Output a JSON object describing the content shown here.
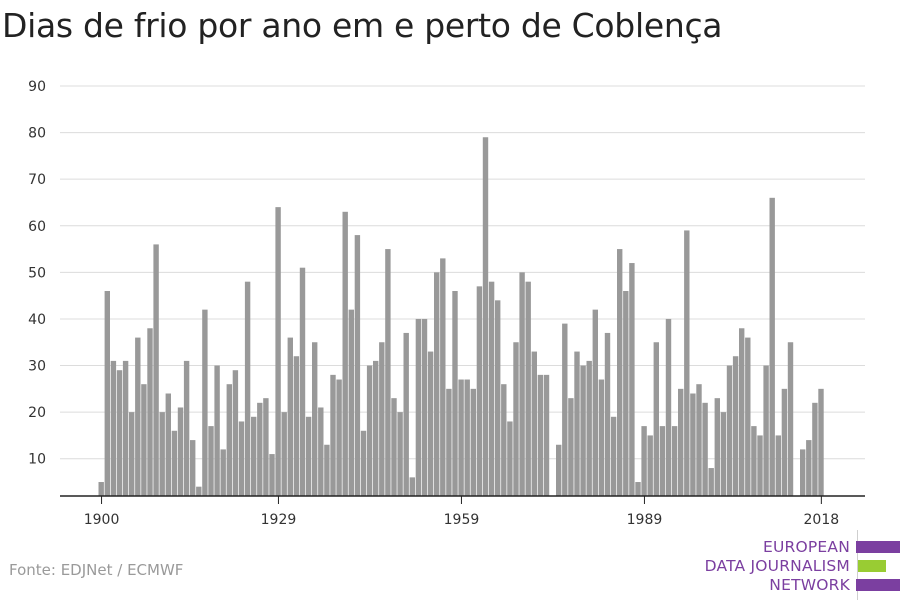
{
  "title": "Dias de frio por ano em e perto de Coblença",
  "source": "Fonte: EDJNet / ECMWF",
  "logo": {
    "lines": [
      "EUROPEAN",
      "DATA JOURNALISM",
      "NETWORK"
    ],
    "colors": {
      "text": "#7b3fa0",
      "purple": "#7b3fa0",
      "green": "#99cc33"
    }
  },
  "chart_data": {
    "type": "bar",
    "title": "Dias de frio por ano em e perto de Coblença",
    "xlabel": "",
    "ylabel": "",
    "ylim": [
      2,
      90
    ],
    "yticks": [
      10,
      20,
      30,
      40,
      50,
      60,
      70,
      80,
      90
    ],
    "xticks": [
      1900,
      1929,
      1959,
      1989,
      2018
    ],
    "grid": true,
    "bar_color": "#999999",
    "x": [
      1900,
      1901,
      1902,
      1903,
      1904,
      1905,
      1906,
      1907,
      1908,
      1909,
      1910,
      1911,
      1912,
      1913,
      1914,
      1915,
      1916,
      1917,
      1918,
      1919,
      1920,
      1921,
      1922,
      1923,
      1924,
      1925,
      1926,
      1927,
      1928,
      1929,
      1930,
      1931,
      1932,
      1933,
      1934,
      1935,
      1936,
      1937,
      1938,
      1939,
      1940,
      1941,
      1942,
      1943,
      1944,
      1945,
      1946,
      1947,
      1948,
      1949,
      1950,
      1951,
      1952,
      1953,
      1954,
      1955,
      1956,
      1957,
      1958,
      1959,
      1960,
      1961,
      1962,
      1963,
      1964,
      1965,
      1966,
      1967,
      1968,
      1969,
      1970,
      1971,
      1972,
      1973,
      1974,
      1975,
      1976,
      1977,
      1978,
      1979,
      1980,
      1981,
      1982,
      1983,
      1984,
      1985,
      1986,
      1987,
      1988,
      1989,
      1990,
      1991,
      1992,
      1993,
      1994,
      1995,
      1996,
      1997,
      1998,
      1999,
      2000,
      2001,
      2002,
      2003,
      2004,
      2005,
      2006,
      2007,
      2008,
      2009,
      2010,
      2011,
      2012,
      2013,
      2014,
      2015,
      2016,
      2017,
      2018
    ],
    "values": [
      5,
      46,
      31,
      29,
      31,
      20,
      36,
      26,
      38,
      56,
      20,
      24,
      16,
      21,
      31,
      14,
      4,
      42,
      17,
      30,
      12,
      26,
      29,
      18,
      48,
      19,
      22,
      23,
      11,
      64,
      20,
      36,
      32,
      51,
      19,
      35,
      21,
      13,
      28,
      27,
      63,
      42,
      58,
      16,
      30,
      31,
      35,
      55,
      23,
      20,
      37,
      6,
      40,
      40,
      33,
      50,
      53,
      25,
      46,
      27,
      27,
      25,
      47,
      79,
      48,
      44,
      26,
      18,
      35,
      50,
      48,
      33,
      28,
      28,
      null,
      13,
      39,
      23,
      33,
      30,
      31,
      42,
      27,
      37,
      19,
      55,
      46,
      52,
      5,
      17,
      15,
      35,
      17,
      40,
      17,
      25,
      59,
      24,
      26,
      22,
      8,
      23,
      20,
      30,
      32,
      38,
      36,
      17,
      15,
      30,
      66,
      15,
      25,
      35,
      null,
      12,
      14,
      22,
      25
    ]
  }
}
